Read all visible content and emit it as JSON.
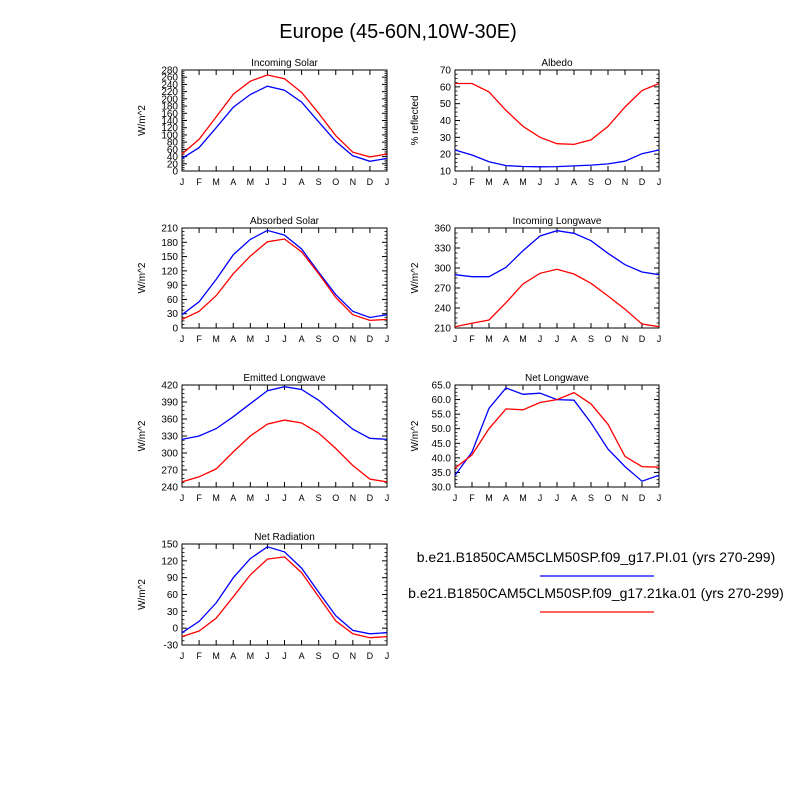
{
  "title": "Europe (45-60N,10W-30E)",
  "months": [
    "J",
    "F",
    "M",
    "A",
    "M",
    "J",
    "J",
    "A",
    "S",
    "O",
    "N",
    "D",
    "J"
  ],
  "colors": {
    "case1": "#0000ff",
    "case2": "#ff0000"
  },
  "legend": {
    "case1": "b.e21.B1850CAM5CLM50SP.f09_g17.PI.01 (yrs 270-299)",
    "case2": "b.e21.B1850CAM5CLM50SP.f09_g17.21ka.01 (yrs 270-299)"
  },
  "chart_data": [
    {
      "type": "line",
      "title": "Incoming Solar",
      "xlabel": "",
      "ylabel": "W/m^2",
      "ylim": [
        0,
        280
      ],
      "yticks": [
        0,
        20,
        40,
        60,
        80,
        100,
        120,
        140,
        160,
        180,
        200,
        220,
        240,
        260,
        280
      ],
      "categories": [
        "J",
        "F",
        "M",
        "A",
        "M",
        "J",
        "J",
        "A",
        "S",
        "O",
        "N",
        "D",
        "J"
      ],
      "series": [
        {
          "name": "b.e21.B1850CAM5CLM50SP.f09_g17.PI.01 (yrs 270-299)",
          "values": [
            35,
            65,
            120,
            177,
            212,
            235,
            224,
            191,
            136,
            82,
            42,
            27,
            35
          ]
        },
        {
          "name": "b.e21.B1850CAM5CLM50SP.f09_g17.21ka.01 (yrs 270-299)",
          "values": [
            47,
            88,
            150,
            213,
            249,
            266,
            256,
            218,
            160,
            98,
            52,
            39,
            47
          ]
        }
      ]
    },
    {
      "type": "line",
      "title": "Albedo",
      "xlabel": "",
      "ylabel": "% reflected",
      "ylim": [
        10,
        70
      ],
      "yticks": [
        10,
        20,
        30,
        40,
        50,
        60,
        70
      ],
      "categories": [
        "J",
        "F",
        "M",
        "A",
        "M",
        "J",
        "J",
        "A",
        "S",
        "O",
        "N",
        "D",
        "J"
      ],
      "series": [
        {
          "name": "b.e21.B1850CAM5CLM50SP.f09_g17.PI.01 (yrs 270-299)",
          "values": [
            22.5,
            19.5,
            15.5,
            13.2,
            12.7,
            12.5,
            12.6,
            13.0,
            13.5,
            14.2,
            15.8,
            20.3,
            22.5
          ]
        },
        {
          "name": "b.e21.B1850CAM5CLM50SP.f09_g17.21ka.01 (yrs 270-299)",
          "values": [
            62,
            62,
            57,
            46,
            36.5,
            30,
            26.2,
            25.8,
            28.5,
            36.5,
            48,
            57.8,
            62
          ]
        }
      ]
    },
    {
      "type": "line",
      "title": "Absorbed Solar",
      "xlabel": "",
      "ylabel": "W/m^2",
      "ylim": [
        0,
        210
      ],
      "yticks": [
        0,
        30,
        60,
        90,
        120,
        150,
        180,
        210
      ],
      "categories": [
        "J",
        "F",
        "M",
        "A",
        "M",
        "J",
        "J",
        "A",
        "S",
        "O",
        "N",
        "D",
        "J"
      ],
      "series": [
        {
          "name": "b.e21.B1850CAM5CLM50SP.f09_g17.PI.01 (yrs 270-299)",
          "values": [
            28,
            55,
            102,
            154,
            186,
            205,
            195,
            166,
            117,
            70,
            35,
            22,
            28
          ]
        },
        {
          "name": "b.e21.B1850CAM5CLM50SP.f09_g17.21ka.01 (yrs 270-299)",
          "values": [
            18,
            35,
            68,
            114,
            151,
            181,
            187,
            160,
            114,
            64,
            28,
            16,
            18
          ]
        }
      ]
    },
    {
      "type": "line",
      "title": "Incoming Longwave",
      "xlabel": "",
      "ylabel": "W/m^2",
      "ylim": [
        210,
        360
      ],
      "yticks": [
        210,
        240,
        270,
        300,
        330,
        360
      ],
      "categories": [
        "J",
        "F",
        "M",
        "A",
        "M",
        "J",
        "J",
        "A",
        "S",
        "O",
        "N",
        "D",
        "J"
      ],
      "series": [
        {
          "name": "b.e21.B1850CAM5CLM50SP.f09_g17.PI.01 (yrs 270-299)",
          "values": [
            290,
            287,
            287,
            301,
            326,
            348,
            356,
            352,
            341,
            322,
            305,
            294,
            290
          ]
        },
        {
          "name": "b.e21.B1850CAM5CLM50SP.f09_g17.21ka.01 (yrs 270-299)",
          "values": [
            212,
            217,
            222,
            248,
            276,
            292,
            298,
            291,
            277,
            258,
            238,
            216,
            212
          ]
        }
      ]
    },
    {
      "type": "line",
      "title": "Emitted Longwave",
      "xlabel": "",
      "ylabel": "W/m^2",
      "ylim": [
        240,
        420
      ],
      "yticks": [
        240,
        270,
        300,
        330,
        360,
        390,
        420
      ],
      "categories": [
        "J",
        "F",
        "M",
        "A",
        "M",
        "J",
        "J",
        "A",
        "S",
        "O",
        "N",
        "D",
        "J"
      ],
      "series": [
        {
          "name": "b.e21.B1850CAM5CLM50SP.f09_g17.PI.01 (yrs 270-299)",
          "values": [
            324,
            330,
            343,
            364,
            387,
            410,
            417,
            412,
            393,
            367,
            342,
            326,
            324
          ]
        },
        {
          "name": "b.e21.B1850CAM5CLM50SP.f09_g17.21ka.01 (yrs 270-299)",
          "values": [
            249,
            258,
            272,
            302,
            330,
            351,
            358,
            353,
            335,
            308,
            278,
            254,
            249
          ]
        }
      ]
    },
    {
      "type": "line",
      "title": "Net Longwave",
      "xlabel": "",
      "ylabel": "W/m^2",
      "ylim": [
        30,
        65
      ],
      "yticks": [
        30.0,
        35.0,
        40.0,
        45.0,
        50.0,
        55.0,
        60.0,
        65.0
      ],
      "ytickLabels": [
        "30.0",
        "35.0",
        "40.0",
        "45.0",
        "50.0",
        "55.0",
        "60.0",
        "65.0"
      ],
      "categories": [
        "J",
        "F",
        "M",
        "A",
        "M",
        "J",
        "J",
        "A",
        "S",
        "O",
        "N",
        "D",
        "J"
      ],
      "series": [
        {
          "name": "b.e21.B1850CAM5CLM50SP.f09_g17.PI.01 (yrs 270-299)",
          "values": [
            34.0,
            42.0,
            57.0,
            64.0,
            61.8,
            62.2,
            60.0,
            59.8,
            52.0,
            43.0,
            37.0,
            32.0,
            34.0
          ]
        },
        {
          "name": "b.e21.B1850CAM5CLM50SP.f09_g17.21ka.01 (yrs 270-299)",
          "values": [
            36.5,
            41.0,
            50.0,
            56.8,
            56.5,
            59.0,
            60.0,
            62.4,
            58.5,
            51.5,
            40.5,
            37.0,
            36.8
          ]
        }
      ]
    },
    {
      "type": "line",
      "title": "Net Radiation",
      "xlabel": "",
      "ylabel": "W/m^2",
      "ylim": [
        -30,
        150
      ],
      "yticks": [
        -30,
        0,
        30,
        60,
        90,
        120,
        150
      ],
      "categories": [
        "J",
        "F",
        "M",
        "A",
        "M",
        "J",
        "J",
        "A",
        "S",
        "O",
        "N",
        "D",
        "J"
      ],
      "series": [
        {
          "name": "b.e21.B1850CAM5CLM50SP.f09_g17.PI.01 (yrs 270-299)",
          "values": [
            -8,
            12,
            45,
            90,
            124,
            145,
            136,
            107,
            64,
            22,
            -4,
            -10,
            -8
          ]
        },
        {
          "name": "b.e21.B1850CAM5CLM50SP.f09_g17.21ka.01 (yrs 270-299)",
          "values": [
            -15,
            -5,
            18,
            56,
            95,
            123,
            127,
            99,
            56,
            13,
            -10,
            -17,
            -15
          ]
        }
      ]
    }
  ]
}
